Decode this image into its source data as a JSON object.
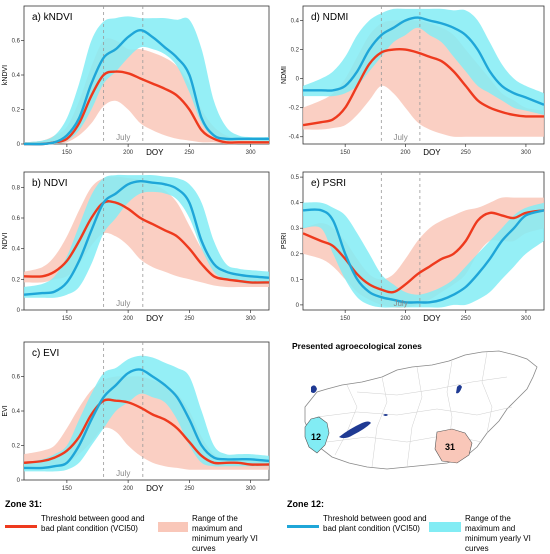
{
  "chart_data": [
    {
      "type": "area",
      "title": "a) kNDVI",
      "ylabel": "kNDVI",
      "xlabel": "DOY",
      "annotation": "July",
      "xlim": [
        115,
        315
      ],
      "ylim": [
        0,
        0.8
      ],
      "xticks": [
        150,
        200,
        250,
        300
      ],
      "yticks": [
        0.0,
        0.2,
        0.4,
        0.6
      ],
      "vlines": [
        180,
        212
      ],
      "series": [
        {
          "role": "zone12",
          "color": "#1fa6d8",
          "band_color": "#82ecf4",
          "x": [
            115,
            130,
            140,
            150,
            160,
            170,
            180,
            190,
            200,
            210,
            220,
            230,
            240,
            250,
            260,
            270,
            280,
            290,
            300,
            315
          ],
          "lower": [
            0.0,
            0.0,
            0.0,
            0.02,
            0.08,
            0.2,
            0.35,
            0.42,
            0.5,
            0.56,
            0.55,
            0.52,
            0.45,
            0.3,
            0.12,
            0.04,
            0.02,
            0.02,
            0.02,
            0.01
          ],
          "upper": [
            0.01,
            0.02,
            0.05,
            0.15,
            0.35,
            0.6,
            0.71,
            0.73,
            0.74,
            0.73,
            0.73,
            0.73,
            0.72,
            0.72,
            0.55,
            0.25,
            0.1,
            0.05,
            0.04,
            0.04
          ],
          "values": [
            0.0,
            0.0,
            0.01,
            0.05,
            0.15,
            0.35,
            0.5,
            0.55,
            0.62,
            0.66,
            0.62,
            0.56,
            0.5,
            0.4,
            0.15,
            0.05,
            0.03,
            0.03,
            0.03,
            0.03
          ]
        },
        {
          "role": "zone31",
          "color": "#ee3a1e",
          "band_color": "#f9c7b9",
          "x": [
            115,
            130,
            140,
            150,
            160,
            170,
            180,
            190,
            200,
            210,
            220,
            230,
            240,
            250,
            260,
            270,
            280,
            290,
            300,
            315
          ],
          "lower": [
            0.0,
            0.0,
            0.0,
            0.01,
            0.05,
            0.12,
            0.22,
            0.25,
            0.2,
            0.12,
            0.08,
            0.05,
            0.03,
            0.02,
            0.01,
            0.01,
            0.0,
            0.0,
            0.0,
            0.0
          ],
          "upper": [
            0.01,
            0.02,
            0.05,
            0.1,
            0.25,
            0.45,
            0.6,
            0.6,
            0.55,
            0.55,
            0.53,
            0.5,
            0.45,
            0.35,
            0.2,
            0.1,
            0.05,
            0.03,
            0.02,
            0.02
          ],
          "values": [
            0.0,
            0.0,
            0.01,
            0.03,
            0.12,
            0.28,
            0.4,
            0.42,
            0.41,
            0.38,
            0.35,
            0.32,
            0.28,
            0.2,
            0.08,
            0.03,
            0.01,
            0.01,
            0.01,
            0.01
          ]
        }
      ]
    },
    {
      "type": "area",
      "title": "b) NDVI",
      "ylabel": "NDVI",
      "xlabel": "DOY",
      "annotation": "July",
      "xlim": [
        115,
        315
      ],
      "ylim": [
        0,
        0.9
      ],
      "xticks": [
        150,
        200,
        250,
        300
      ],
      "yticks": [
        0.0,
        0.2,
        0.4,
        0.6,
        0.8
      ],
      "vlines": [
        180,
        212
      ],
      "series": [
        {
          "role": "zone12",
          "color": "#1fa6d8",
          "band_color": "#82ecf4",
          "x": [
            115,
            130,
            140,
            150,
            160,
            170,
            180,
            190,
            200,
            210,
            220,
            230,
            240,
            250,
            260,
            270,
            280,
            290,
            300,
            315
          ],
          "lower": [
            0.08,
            0.08,
            0.08,
            0.1,
            0.15,
            0.3,
            0.5,
            0.6,
            0.7,
            0.76,
            0.77,
            0.76,
            0.72,
            0.6,
            0.4,
            0.25,
            0.2,
            0.18,
            0.17,
            0.17
          ],
          "upper": [
            0.15,
            0.17,
            0.22,
            0.35,
            0.55,
            0.75,
            0.86,
            0.88,
            0.88,
            0.88,
            0.88,
            0.87,
            0.86,
            0.82,
            0.7,
            0.45,
            0.3,
            0.27,
            0.26,
            0.25
          ],
          "values": [
            0.1,
            0.11,
            0.12,
            0.18,
            0.32,
            0.52,
            0.7,
            0.76,
            0.82,
            0.84,
            0.83,
            0.82,
            0.79,
            0.7,
            0.45,
            0.3,
            0.25,
            0.23,
            0.22,
            0.21
          ]
        },
        {
          "role": "zone31",
          "color": "#ee3a1e",
          "band_color": "#f9c7b9",
          "x": [
            115,
            130,
            140,
            150,
            160,
            170,
            180,
            190,
            200,
            210,
            220,
            230,
            240,
            250,
            260,
            270,
            280,
            290,
            300,
            315
          ],
          "lower": [
            0.18,
            0.18,
            0.2,
            0.22,
            0.3,
            0.42,
            0.5,
            0.48,
            0.42,
            0.33,
            0.28,
            0.25,
            0.22,
            0.2,
            0.18,
            0.16,
            0.15,
            0.15,
            0.15,
            0.15
          ],
          "upper": [
            0.25,
            0.28,
            0.35,
            0.48,
            0.65,
            0.8,
            0.86,
            0.87,
            0.86,
            0.85,
            0.82,
            0.78,
            0.7,
            0.55,
            0.4,
            0.3,
            0.25,
            0.23,
            0.22,
            0.22
          ],
          "values": [
            0.22,
            0.22,
            0.25,
            0.32,
            0.45,
            0.6,
            0.7,
            0.7,
            0.66,
            0.6,
            0.56,
            0.52,
            0.48,
            0.4,
            0.3,
            0.22,
            0.2,
            0.19,
            0.18,
            0.18
          ]
        }
      ]
    },
    {
      "type": "area",
      "title": "c) EVI",
      "ylabel": "EVI",
      "xlabel": "DOY",
      "annotation": "July",
      "xlim": [
        115,
        315
      ],
      "ylim": [
        0,
        0.8
      ],
      "xticks": [
        150,
        200,
        250,
        300
      ],
      "yticks": [
        0.0,
        0.2,
        0.4,
        0.6
      ],
      "vlines": [
        180,
        212
      ],
      "series": [
        {
          "role": "zone12",
          "color": "#1fa6d8",
          "band_color": "#82ecf4",
          "x": [
            115,
            130,
            140,
            150,
            160,
            170,
            180,
            190,
            200,
            210,
            220,
            230,
            240,
            250,
            260,
            270,
            280,
            290,
            300,
            315
          ],
          "lower": [
            0.05,
            0.05,
            0.05,
            0.06,
            0.1,
            0.2,
            0.3,
            0.4,
            0.45,
            0.5,
            0.48,
            0.45,
            0.35,
            0.2,
            0.1,
            0.08,
            0.08,
            0.08,
            0.08,
            0.08
          ],
          "upper": [
            0.1,
            0.12,
            0.15,
            0.2,
            0.35,
            0.5,
            0.62,
            0.65,
            0.7,
            0.72,
            0.71,
            0.68,
            0.65,
            0.6,
            0.4,
            0.2,
            0.15,
            0.15,
            0.15,
            0.14
          ],
          "values": [
            0.07,
            0.07,
            0.08,
            0.1,
            0.2,
            0.35,
            0.48,
            0.55,
            0.62,
            0.64,
            0.6,
            0.55,
            0.48,
            0.35,
            0.2,
            0.13,
            0.12,
            0.12,
            0.12,
            0.11
          ]
        },
        {
          "role": "zone31",
          "color": "#ee3a1e",
          "band_color": "#f9c7b9",
          "x": [
            115,
            130,
            140,
            150,
            160,
            170,
            180,
            190,
            200,
            210,
            220,
            230,
            240,
            250,
            260,
            270,
            280,
            290,
            300,
            315
          ],
          "lower": [
            0.08,
            0.08,
            0.09,
            0.1,
            0.15,
            0.22,
            0.3,
            0.28,
            0.2,
            0.14,
            0.1,
            0.08,
            0.07,
            0.06,
            0.06,
            0.06,
            0.06,
            0.06,
            0.06,
            0.06
          ],
          "upper": [
            0.15,
            0.17,
            0.2,
            0.3,
            0.42,
            0.52,
            0.58,
            0.6,
            0.6,
            0.6,
            0.58,
            0.55,
            0.5,
            0.4,
            0.25,
            0.15,
            0.12,
            0.12,
            0.12,
            0.12
          ],
          "values": [
            0.1,
            0.11,
            0.13,
            0.17,
            0.25,
            0.38,
            0.46,
            0.46,
            0.45,
            0.42,
            0.38,
            0.35,
            0.3,
            0.22,
            0.14,
            0.1,
            0.1,
            0.1,
            0.09,
            0.09
          ]
        }
      ]
    },
    {
      "type": "area",
      "title": "d) NDMI",
      "ylabel": "NDMI",
      "xlabel": "DOY",
      "annotation": "July",
      "xlim": [
        115,
        315
      ],
      "ylim": [
        -0.45,
        0.5
      ],
      "xticks": [
        150,
        200,
        250,
        300
      ],
      "yticks": [
        -0.4,
        -0.2,
        0.0,
        0.2,
        0.4
      ],
      "vlines": [
        180,
        212
      ],
      "series": [
        {
          "role": "zone12",
          "color": "#1fa6d8",
          "band_color": "#82ecf4",
          "x": [
            115,
            130,
            140,
            150,
            160,
            170,
            180,
            190,
            200,
            210,
            220,
            230,
            240,
            250,
            260,
            270,
            280,
            290,
            300,
            315
          ],
          "lower": [
            -0.12,
            -0.12,
            -0.12,
            -0.1,
            -0.05,
            0.05,
            0.15,
            0.25,
            0.3,
            0.35,
            0.3,
            0.25,
            0.15,
            0.05,
            -0.05,
            -0.1,
            -0.15,
            -0.2,
            -0.22,
            -0.25
          ],
          "upper": [
            -0.05,
            0.0,
            0.05,
            0.15,
            0.3,
            0.4,
            0.45,
            0.48,
            0.48,
            0.48,
            0.48,
            0.48,
            0.47,
            0.47,
            0.4,
            0.25,
            0.1,
            0.0,
            -0.05,
            -0.1
          ],
          "values": [
            -0.08,
            -0.08,
            -0.08,
            -0.05,
            0.05,
            0.2,
            0.3,
            0.35,
            0.4,
            0.42,
            0.4,
            0.38,
            0.35,
            0.3,
            0.2,
            0.05,
            -0.05,
            -0.1,
            -0.13,
            -0.18
          ]
        },
        {
          "role": "zone31",
          "color": "#ee3a1e",
          "band_color": "#f9c7b9",
          "x": [
            115,
            130,
            140,
            150,
            160,
            170,
            180,
            190,
            200,
            210,
            220,
            230,
            240,
            250,
            260,
            270,
            280,
            290,
            300,
            315
          ],
          "lower": [
            -0.35,
            -0.35,
            -0.34,
            -0.32,
            -0.25,
            -0.15,
            -0.05,
            -0.1,
            -0.2,
            -0.3,
            -0.35,
            -0.38,
            -0.4,
            -0.4,
            -0.4,
            -0.4,
            -0.4,
            -0.4,
            -0.4,
            -0.4
          ],
          "upper": [
            -0.2,
            -0.15,
            -0.1,
            0.0,
            0.15,
            0.3,
            0.38,
            0.4,
            0.4,
            0.4,
            0.38,
            0.35,
            0.3,
            0.2,
            0.1,
            0.0,
            -0.1,
            -0.15,
            -0.2,
            -0.22
          ],
          "values": [
            -0.32,
            -0.3,
            -0.28,
            -0.2,
            -0.05,
            0.1,
            0.18,
            0.2,
            0.2,
            0.18,
            0.15,
            0.12,
            0.05,
            -0.05,
            -0.15,
            -0.2,
            -0.23,
            -0.25,
            -0.26,
            -0.26
          ]
        }
      ]
    },
    {
      "type": "area",
      "title": "e) PSRI",
      "ylabel": "PSRI",
      "xlabel": "DOY",
      "annotation": "July",
      "xlim": [
        115,
        315
      ],
      "ylim": [
        -0.02,
        0.52
      ],
      "xticks": [
        150,
        200,
        250,
        300
      ],
      "yticks": [
        0.0,
        0.1,
        0.2,
        0.3,
        0.4,
        0.5
      ],
      "vlines": [
        180,
        212
      ],
      "series": [
        {
          "role": "zone12",
          "color": "#1fa6d8",
          "band_color": "#82ecf4",
          "x": [
            115,
            130,
            140,
            150,
            160,
            170,
            180,
            190,
            200,
            210,
            220,
            230,
            240,
            250,
            260,
            270,
            280,
            290,
            300,
            315
          ],
          "lower": [
            0.3,
            0.3,
            0.2,
            0.1,
            0.03,
            0.0,
            -0.01,
            -0.01,
            -0.01,
            -0.01,
            -0.01,
            -0.01,
            0.0,
            0.0,
            0.02,
            0.05,
            0.1,
            0.15,
            0.2,
            0.25
          ],
          "upper": [
            0.4,
            0.4,
            0.38,
            0.35,
            0.28,
            0.2,
            0.12,
            0.08,
            0.05,
            0.04,
            0.05,
            0.07,
            0.1,
            0.15,
            0.2,
            0.25,
            0.3,
            0.35,
            0.38,
            0.4
          ],
          "values": [
            0.37,
            0.37,
            0.33,
            0.2,
            0.1,
            0.05,
            0.03,
            0.02,
            0.01,
            0.01,
            0.01,
            0.02,
            0.04,
            0.07,
            0.12,
            0.18,
            0.25,
            0.3,
            0.35,
            0.37
          ]
        },
        {
          "role": "zone31",
          "color": "#ee3a1e",
          "band_color": "#f9c7b9",
          "x": [
            115,
            130,
            140,
            150,
            160,
            170,
            180,
            190,
            200,
            210,
            220,
            230,
            240,
            250,
            260,
            270,
            280,
            290,
            300,
            315
          ],
          "lower": [
            0.2,
            0.18,
            0.15,
            0.1,
            0.05,
            0.02,
            0.0,
            -0.01,
            -0.01,
            0.0,
            0.02,
            0.05,
            0.08,
            0.12,
            0.2,
            0.25,
            0.25,
            0.25,
            0.28,
            0.3
          ],
          "upper": [
            0.3,
            0.32,
            0.3,
            0.25,
            0.18,
            0.12,
            0.1,
            0.12,
            0.18,
            0.25,
            0.3,
            0.33,
            0.35,
            0.37,
            0.38,
            0.4,
            0.42,
            0.42,
            0.42,
            0.42
          ],
          "values": [
            0.28,
            0.25,
            0.23,
            0.18,
            0.12,
            0.08,
            0.06,
            0.05,
            0.08,
            0.12,
            0.15,
            0.18,
            0.2,
            0.25,
            0.33,
            0.36,
            0.35,
            0.34,
            0.36,
            0.37
          ]
        }
      ]
    }
  ],
  "map": {
    "title": "Presented agroecological zones",
    "zone12_label": "12",
    "zone31_label": "31",
    "zone12_color": "#82ecf4",
    "zone31_color": "#f9c7b9",
    "lake_color": "#1f3a93"
  },
  "legend": {
    "zone31": {
      "title": "Zone 31:",
      "line_text": "Threshold between good and bad plant condition (VCI50)",
      "band_text": "Range of the maximum and minimum yearly VI curves",
      "line_color": "#ee3a1e",
      "band_color": "#f9c7b9"
    },
    "zone12": {
      "title": "Zone 12:",
      "line_text": "Threshold between good and bad plant condition (VCI50)",
      "band_text": "Range of the maximum and minimum yearly VI curves",
      "line_color": "#1fa6d8",
      "band_color": "#82ecf4"
    }
  }
}
